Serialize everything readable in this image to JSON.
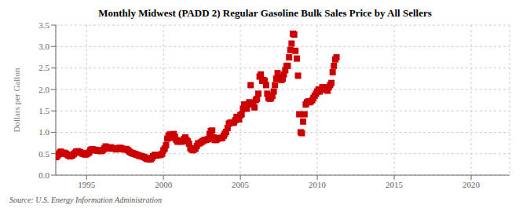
{
  "chart_data": {
    "type": "scatter",
    "title": "Monthly Midwest (PADD 2) Regular Gasoline Bulk Sales Price by All Sellers",
    "ylabel": "Dollars per Gallon",
    "annotation": "Source: U.S. Energy Information Administration",
    "color": "#cc0000",
    "marker": "square",
    "grid": true,
    "xlim": [
      1993.0,
      2022.5
    ],
    "xticks": [
      1995,
      2000,
      2005,
      2010,
      2015,
      2020
    ],
    "ylim": [
      0.0,
      3.5
    ],
    "yticks": [
      {
        "value": 0.0,
        "label": "0.0"
      },
      0.5,
      {
        "value": 1.0,
        "label": "1.0"
      },
      1.5,
      {
        "value": 2.0,
        "label": "2.0"
      },
      2.5,
      {
        "value": 3.0,
        "label": "3.0"
      },
      3.5
    ],
    "x": [
      1993.0,
      1993.08,
      1993.17,
      1993.25,
      1993.33,
      1993.42,
      1993.5,
      1993.58,
      1993.67,
      1993.75,
      1993.83,
      1993.92,
      1994.0,
      1994.08,
      1994.17,
      1994.25,
      1994.33,
      1994.42,
      1994.5,
      1994.58,
      1994.67,
      1994.75,
      1994.83,
      1994.92,
      1995.0,
      1995.08,
      1995.17,
      1995.25,
      1995.33,
      1995.42,
      1995.5,
      1995.58,
      1995.67,
      1995.75,
      1995.83,
      1995.92,
      1996.0,
      1996.08,
      1996.17,
      1996.25,
      1996.33,
      1996.42,
      1996.5,
      1996.58,
      1996.67,
      1996.75,
      1996.83,
      1996.92,
      1997.0,
      1997.08,
      1997.17,
      1997.25,
      1997.33,
      1997.42,
      1997.5,
      1997.58,
      1997.67,
      1997.75,
      1997.83,
      1997.92,
      1998.0,
      1998.08,
      1998.17,
      1998.25,
      1998.33,
      1998.42,
      1998.5,
      1998.58,
      1998.67,
      1998.75,
      1998.83,
      1998.92,
      1999.0,
      1999.08,
      1999.17,
      1999.25,
      1999.33,
      1999.42,
      1999.5,
      1999.58,
      1999.67,
      1999.75,
      1999.83,
      1999.92,
      2000.0,
      2000.08,
      2000.17,
      2000.25,
      2000.33,
      2000.42,
      2000.5,
      2000.58,
      2000.67,
      2000.75,
      2000.83,
      2000.92,
      2001.0,
      2001.08,
      2001.17,
      2001.25,
      2001.33,
      2001.42,
      2001.5,
      2001.58,
      2001.67,
      2001.75,
      2001.83,
      2001.92,
      2002.0,
      2002.08,
      2002.17,
      2002.25,
      2002.33,
      2002.42,
      2002.5,
      2002.58,
      2002.67,
      2002.75,
      2002.83,
      2002.92,
      2003.0,
      2003.08,
      2003.17,
      2003.25,
      2003.33,
      2003.42,
      2003.5,
      2003.58,
      2003.67,
      2003.75,
      2003.83,
      2003.92,
      2004.0,
      2004.08,
      2004.17,
      2004.25,
      2004.33,
      2004.42,
      2004.5,
      2004.58,
      2004.67,
      2004.75,
      2004.83,
      2004.92,
      2005.0,
      2005.08,
      2005.17,
      2005.25,
      2005.33,
      2005.42,
      2005.5,
      2005.58,
      2005.67,
      2005.75,
      2005.83,
      2005.92,
      2006.0,
      2006.08,
      2006.17,
      2006.25,
      2006.33,
      2006.42,
      2006.5,
      2006.58,
      2006.67,
      2006.75,
      2006.83,
      2006.92,
      2007.0,
      2007.08,
      2007.17,
      2007.25,
      2007.33,
      2007.42,
      2007.5,
      2007.58,
      2007.67,
      2007.75,
      2007.83,
      2007.92,
      2008.0,
      2008.08,
      2008.17,
      2008.25,
      2008.33,
      2008.42,
      2008.5,
      2008.58,
      2008.67,
      2008.75,
      2008.83,
      2008.92,
      2009.0,
      2009.08,
      2009.17,
      2009.25,
      2009.33,
      2009.42,
      2009.5,
      2009.58,
      2009.67,
      2009.75,
      2009.83,
      2009.92,
      2010.0,
      2010.08,
      2010.17,
      2010.25,
      2010.33,
      2010.42,
      2010.5,
      2010.58,
      2010.67,
      2010.75,
      2010.83,
      2010.92,
      2011.0,
      2011.08,
      2011.17,
      2011.25
    ],
    "values": [
      0.42,
      0.44,
      0.48,
      0.52,
      0.55,
      0.52,
      0.5,
      0.52,
      0.5,
      0.48,
      0.46,
      0.44,
      0.45,
      0.46,
      0.49,
      0.52,
      0.55,
      0.56,
      0.54,
      0.54,
      0.52,
      0.5,
      0.5,
      0.48,
      0.49,
      0.51,
      0.53,
      0.58,
      0.6,
      0.6,
      0.58,
      0.59,
      0.58,
      0.57,
      0.57,
      0.56,
      0.57,
      0.59,
      0.63,
      0.67,
      0.64,
      0.62,
      0.63,
      0.65,
      0.63,
      0.62,
      0.62,
      0.6,
      0.62,
      0.63,
      0.64,
      0.63,
      0.61,
      0.6,
      0.6,
      0.61,
      0.59,
      0.56,
      0.54,
      0.52,
      0.51,
      0.5,
      0.49,
      0.48,
      0.47,
      0.45,
      0.45,
      0.44,
      0.43,
      0.42,
      0.4,
      0.38,
      0.38,
      0.37,
      0.37,
      0.4,
      0.44,
      0.47,
      0.47,
      0.46,
      0.47,
      0.47,
      0.48,
      0.5,
      0.58,
      0.62,
      0.7,
      0.85,
      0.92,
      0.95,
      0.87,
      0.89,
      0.96,
      0.9,
      0.82,
      0.78,
      0.8,
      0.8,
      0.78,
      0.8,
      0.84,
      0.88,
      0.82,
      0.79,
      0.73,
      0.63,
      0.6,
      0.58,
      0.6,
      0.62,
      0.68,
      0.74,
      0.74,
      0.76,
      0.78,
      0.8,
      0.82,
      0.82,
      0.83,
      0.84,
      0.96,
      1.03,
      1.04,
      0.88,
      0.82,
      0.82,
      0.84,
      0.86,
      0.87,
      0.86,
      0.87,
      0.92,
      0.97,
      1.01,
      1.1,
      1.2,
      1.22,
      1.23,
      1.22,
      1.23,
      1.28,
      1.36,
      1.35,
      1.3,
      1.4,
      1.42,
      1.55,
      1.65,
      1.65,
      1.55,
      1.65,
      1.7,
      2.1,
      1.68,
      1.65,
      1.58,
      1.75,
      1.78,
      1.9,
      2.3,
      2.35,
      2.2,
      2.22,
      2.2,
      2.1,
      1.9,
      1.8,
      1.78,
      1.8,
      1.85,
      1.95,
      2.1,
      2.25,
      2.38,
      2.3,
      2.28,
      2.22,
      2.25,
      2.35,
      2.45,
      2.55,
      2.55,
      2.75,
      2.92,
      3.07,
      3.3,
      3.28,
      2.9,
      2.72,
      2.32,
      1.42,
      1.0,
      0.98,
      1.25,
      1.42,
      1.65,
      1.7,
      1.72,
      1.7,
      1.72,
      1.75,
      1.8,
      1.85,
      1.9,
      1.95,
      2.0,
      1.95,
      2.0,
      2.05,
      2.05,
      2.0,
      2.0,
      1.97,
      2.05,
      2.1,
      2.15,
      2.4,
      2.55,
      2.7,
      2.75
    ]
  }
}
